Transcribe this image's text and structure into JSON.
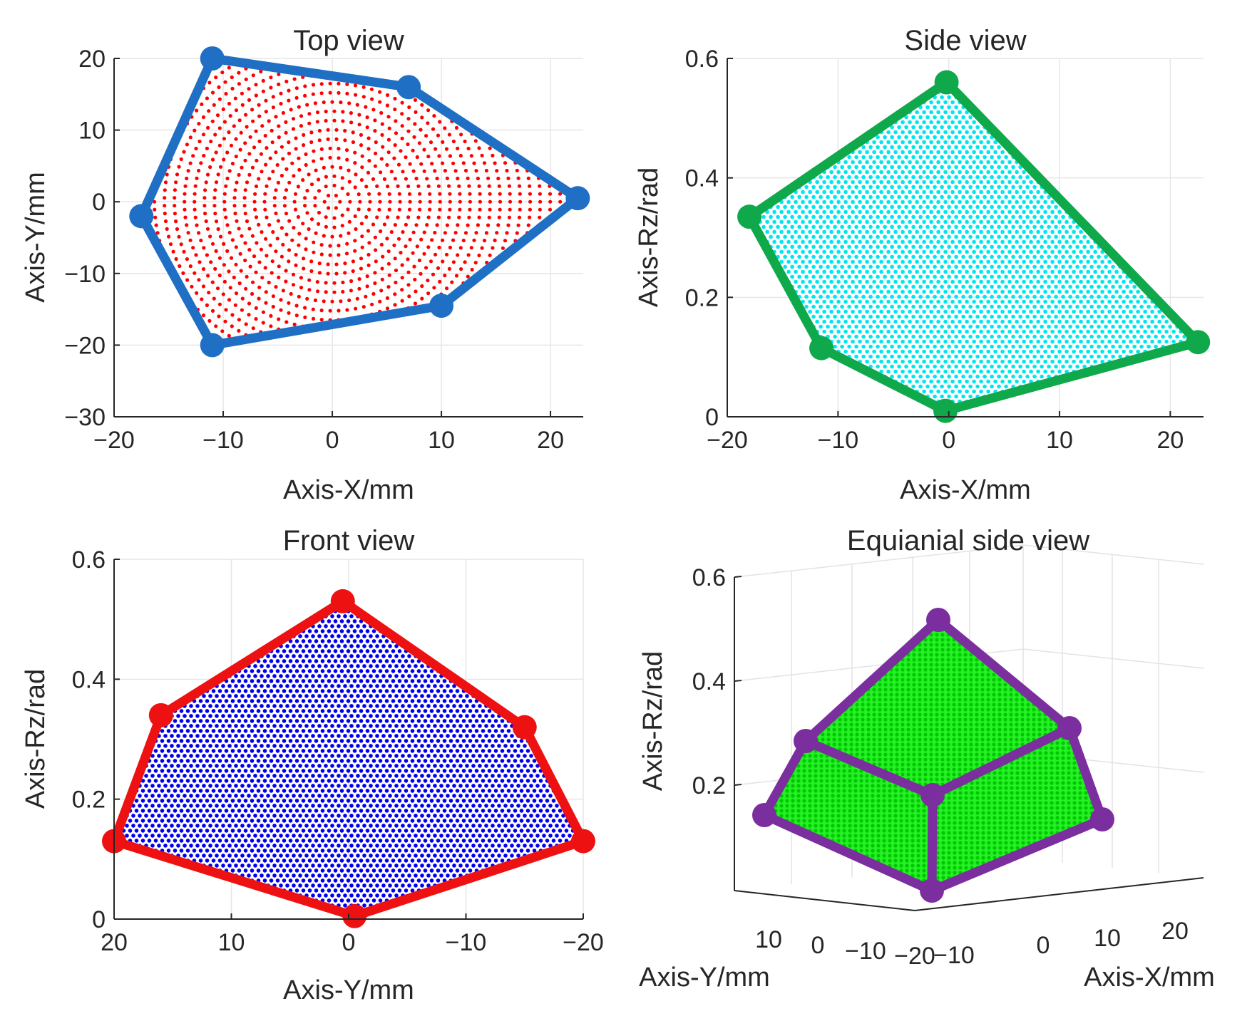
{
  "figure": {
    "panels": [
      "top_view",
      "side_view",
      "front_view",
      "equi_view"
    ]
  },
  "chart_data": [
    {
      "id": "top_view",
      "type": "scatter",
      "title": "Top view",
      "xlabel": "Axis-X/mm",
      "ylabel": "Axis-Y/mm",
      "xlim": [
        -20,
        23
      ],
      "ylim": [
        -30,
        20
      ],
      "xticks": [
        -20,
        -10,
        0,
        10,
        20
      ],
      "xtick_labels": [
        "−20",
        "−10",
        "0",
        "10",
        "20"
      ],
      "yticks": [
        -30,
        -20,
        -10,
        0,
        10,
        20
      ],
      "ytick_labels": [
        "−30",
        "−20",
        "−10",
        "0",
        "10",
        "20"
      ],
      "grid": true,
      "scatter_color": "#ff0000",
      "boundary_color": "#1f6fc5",
      "boundary_x": [
        -11,
        7,
        22.5,
        10,
        -11,
        -17.5
      ],
      "boundary_y": [
        20,
        16,
        0.5,
        -14.5,
        -20,
        -2
      ]
    },
    {
      "id": "side_view",
      "type": "scatter",
      "title": "Side view",
      "xlabel": "Axis-X/mm",
      "ylabel": "Axis-Rz/rad",
      "xlim": [
        -20,
        23
      ],
      "ylim": [
        0,
        0.6
      ],
      "xticks": [
        -20,
        -10,
        0,
        10,
        20
      ],
      "xtick_labels": [
        "−20",
        "−10",
        "0",
        "10",
        "20"
      ],
      "yticks": [
        0,
        0.2,
        0.4,
        0.6
      ],
      "ytick_labels": [
        "0",
        "0.2",
        "0.4",
        "0.6"
      ],
      "grid": true,
      "scatter_color": "#00e5ee",
      "boundary_color": "#0fa84a",
      "boundary_x": [
        -0.2,
        22.5,
        -0.3,
        -11.5,
        -18
      ],
      "boundary_y": [
        0.56,
        0.125,
        0.01,
        0.115,
        0.335
      ]
    },
    {
      "id": "front_view",
      "type": "scatter",
      "title": "Front view",
      "xlabel": "Axis-Y/mm",
      "ylabel": "Axis-Rz/rad",
      "xlim": [
        20,
        -20
      ],
      "ylim": [
        0,
        0.6
      ],
      "xticks": [
        20,
        10,
        0,
        -10,
        -20
      ],
      "xtick_labels": [
        "20",
        "10",
        "0",
        "−10",
        "−20"
      ],
      "yticks": [
        0,
        0.2,
        0.4,
        0.6
      ],
      "ytick_labels": [
        "0",
        "0.2",
        "0.4",
        "0.6"
      ],
      "grid": true,
      "scatter_color": "#0000ee",
      "boundary_color": "#ee1111",
      "boundary_x": [
        0.5,
        -15,
        -20,
        -0.5,
        20,
        16
      ],
      "boundary_y": [
        0.53,
        0.32,
        0.13,
        0.005,
        0.13,
        0.34
      ]
    },
    {
      "id": "equi_view",
      "type": "scatter",
      "title": "Equianial side view",
      "xlabel": "Axis-X/mm",
      "ylabel": "Axis-Rz/rad",
      "zlabel": "Axis-Y/mm",
      "zticks": [
        0.2,
        0.4,
        0.6
      ],
      "ztick_labels": [
        "0.2",
        "0.4",
        "0.6"
      ],
      "yaxis_ticks": [
        "10",
        "0",
        "−10",
        "−20"
      ],
      "xaxis_ticks": [
        "−10",
        "0",
        "10",
        "20"
      ],
      "grid": true,
      "scatter_color": "#00ee00",
      "boundary_color": "#7b2f9e",
      "vertices": [
        {
          "name": "top",
          "rz": 0.51
        },
        {
          "name": "upper-left",
          "rz": 0.28
        },
        {
          "name": "upper-right",
          "rz": 0.3
        },
        {
          "name": "center",
          "rz": 0.25
        },
        {
          "name": "left",
          "rz": 0.14
        },
        {
          "name": "right",
          "rz": 0.14
        },
        {
          "name": "bottom",
          "rz": 0.0
        }
      ]
    }
  ]
}
